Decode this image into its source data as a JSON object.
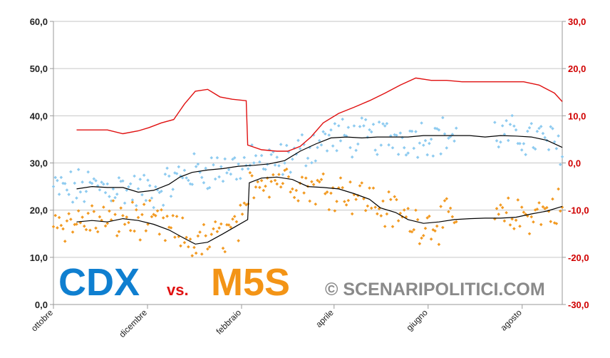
{
  "chart_data": {
    "type": "scatter",
    "title": "",
    "left_axis": {
      "ylim": [
        0,
        60
      ],
      "ticks": [
        "0,0",
        "10,0",
        "20,0",
        "30,0",
        "40,0",
        "50,0",
        "60,0"
      ]
    },
    "right_axis": {
      "ylim": [
        -30,
        30
      ],
      "ticks": [
        "-30,0",
        "-20,0",
        "-10,0",
        "0,0",
        "10,0",
        "20,0",
        "30,0"
      ]
    },
    "x_axis": {
      "range_days": [
        0,
        330
      ],
      "tick_days": [
        0,
        61,
        122,
        182,
        243,
        304
      ],
      "ticks": [
        "ottobre",
        "dicembre",
        "febbraio",
        "aprile",
        "giugno",
        "agosto"
      ]
    },
    "grid": true,
    "series": [
      {
        "name": "CDX",
        "axis": "left",
        "color": "#8ecbf0",
        "trend": [
          [
            15,
            24.5
          ],
          [
            25,
            25.0
          ],
          [
            35,
            24.8
          ],
          [
            45,
            24.8
          ],
          [
            55,
            23.8
          ],
          [
            65,
            24.2
          ],
          [
            75,
            25.5
          ],
          [
            82,
            27.0
          ],
          [
            90,
            28.0
          ],
          [
            100,
            28.5
          ],
          [
            110,
            28.8
          ],
          [
            120,
            29.3
          ],
          [
            130,
            29.5
          ],
          [
            140,
            29.8
          ],
          [
            150,
            30.5
          ],
          [
            160,
            32.5
          ],
          [
            170,
            34.0
          ],
          [
            180,
            35.3
          ],
          [
            190,
            35.5
          ],
          [
            200,
            35.3
          ],
          [
            210,
            35.5
          ],
          [
            220,
            35.5
          ],
          [
            230,
            35.5
          ],
          [
            240,
            35.8
          ],
          [
            250,
            35.8
          ],
          [
            260,
            35.8
          ],
          [
            270,
            35.8
          ],
          [
            280,
            35.5
          ],
          [
            290,
            35.8
          ],
          [
            300,
            35.7
          ],
          [
            310,
            35.5
          ],
          [
            320,
            34.8
          ],
          [
            330,
            33.3
          ]
        ],
        "points_generated_around_trend": true
      },
      {
        "name": "M5S",
        "axis": "left",
        "color": "#f29a22",
        "trend": [
          [
            15,
            17.5
          ],
          [
            25,
            17.8
          ],
          [
            35,
            17.5
          ],
          [
            45,
            18.2
          ],
          [
            55,
            17.8
          ],
          [
            65,
            17.0
          ],
          [
            75,
            15.8
          ],
          [
            85,
            14.0
          ],
          [
            92,
            12.8
          ],
          [
            100,
            13.2
          ],
          [
            110,
            15.0
          ],
          [
            118,
            16.5
          ],
          [
            126,
            18.0
          ],
          [
            127,
            25.8
          ],
          [
            135,
            26.8
          ],
          [
            145,
            27.0
          ],
          [
            155,
            26.5
          ],
          [
            165,
            25.0
          ],
          [
            175,
            24.8
          ],
          [
            185,
            24.5
          ],
          [
            195,
            23.5
          ],
          [
            205,
            22.3
          ],
          [
            212,
            20.5
          ],
          [
            222,
            19.5
          ],
          [
            230,
            18.0
          ],
          [
            240,
            17.2
          ],
          [
            250,
            17.5
          ],
          [
            260,
            18.0
          ],
          [
            270,
            18.2
          ],
          [
            280,
            18.3
          ],
          [
            290,
            18.3
          ],
          [
            300,
            18.5
          ],
          [
            310,
            19.2
          ],
          [
            320,
            19.8
          ],
          [
            330,
            20.8
          ]
        ],
        "points_generated_around_trend": true
      },
      {
        "name": "",
        "axis": "right",
        "color": "#e01010",
        "values": [
          [
            15,
            7.0
          ],
          [
            25,
            7.0
          ],
          [
            35,
            7.0
          ],
          [
            45,
            6.2
          ],
          [
            55,
            6.8
          ],
          [
            62,
            7.5
          ],
          [
            70,
            8.5
          ],
          [
            78,
            9.2
          ],
          [
            85,
            12.5
          ],
          [
            92,
            15.2
          ],
          [
            100,
            15.6
          ],
          [
            108,
            14.0
          ],
          [
            116,
            13.5
          ],
          [
            125,
            13.2
          ],
          [
            126,
            3.8
          ],
          [
            135,
            2.8
          ],
          [
            145,
            2.5
          ],
          [
            152,
            2.5
          ],
          [
            160,
            3.5
          ],
          [
            167,
            5.5
          ],
          [
            175,
            8.5
          ],
          [
            185,
            10.5
          ],
          [
            195,
            11.8
          ],
          [
            205,
            13.2
          ],
          [
            215,
            14.8
          ],
          [
            225,
            16.5
          ],
          [
            235,
            18.0
          ],
          [
            245,
            17.5
          ],
          [
            255,
            17.5
          ],
          [
            265,
            17.2
          ],
          [
            275,
            17.2
          ],
          [
            285,
            17.2
          ],
          [
            295,
            17.2
          ],
          [
            305,
            17.2
          ],
          [
            315,
            16.5
          ],
          [
            325,
            14.8
          ],
          [
            330,
            13.0
          ]
        ]
      }
    ],
    "labels": {
      "cdx": "CDX",
      "vs": "vs.",
      "m5s": "M5S",
      "copyright": "© SCENARIPOLITICI.COM"
    }
  }
}
